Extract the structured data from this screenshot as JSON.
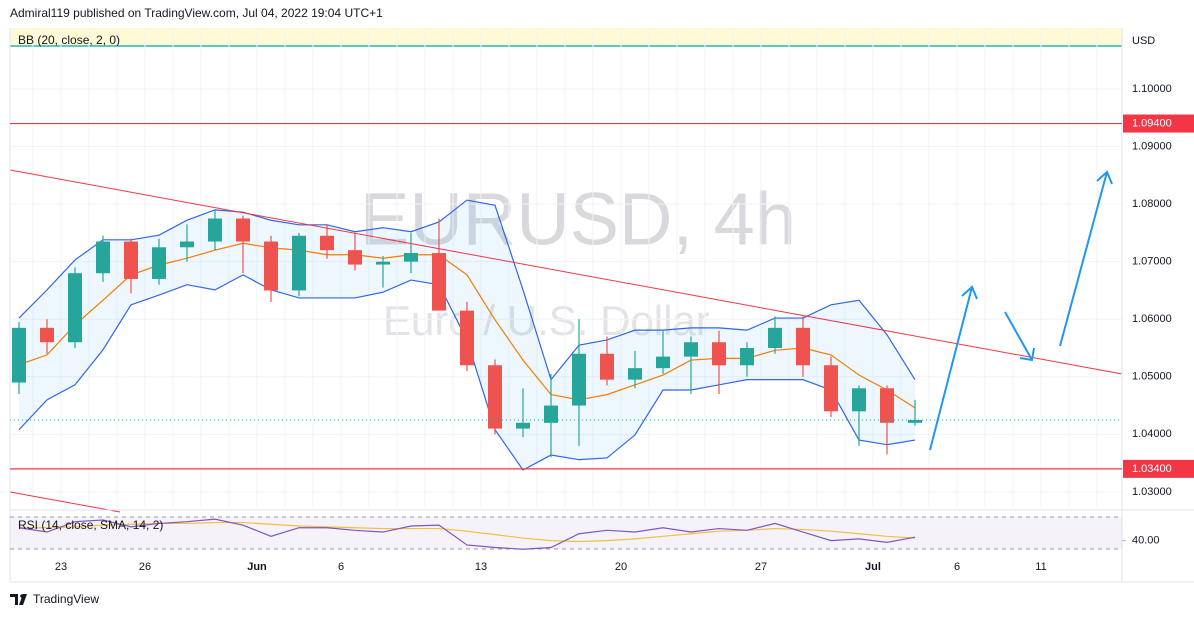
{
  "header": "Admiral119 published on TradingView.com, Jul 04, 2022 19:04 UTC+1",
  "footer": "TradingView",
  "chart_data": {
    "type": "candlestick",
    "title": "EURUSD, 4h",
    "subtitle": "Euro / U.S. Dollar",
    "currency": "USD",
    "categories": [
      null,
      null,
      "23",
      null,
      null,
      "26",
      null,
      null,
      null,
      "Jun",
      null,
      null,
      "6",
      null,
      null,
      null,
      null,
      "13",
      null,
      null,
      null,
      null,
      "20",
      null,
      null,
      null,
      null,
      "27",
      null,
      null,
      null,
      "Jul",
      null,
      null,
      "6",
      null,
      null,
      "11",
      null,
      null
    ],
    "open": [
      1.049,
      1.0585,
      1.056,
      1.068,
      1.0735,
      1.067,
      1.0725,
      1.0735,
      1.0775,
      1.0735,
      1.065,
      1.0745,
      1.072,
      1.0695,
      1.07,
      1.0715,
      1.0615,
      1.052,
      1.041,
      1.042,
      1.045,
      1.054,
      1.0495,
      1.0515,
      1.0535,
      1.056,
      1.052,
      1.055,
      1.0585,
      1.052,
      1.044,
      1.048,
      1.042,
      null,
      null,
      null,
      null,
      null,
      null,
      null
    ],
    "high": [
      1.0595,
      1.06,
      1.069,
      1.0745,
      1.074,
      1.074,
      1.0765,
      1.079,
      1.078,
      1.0745,
      1.075,
      1.0765,
      1.075,
      1.071,
      1.075,
      1.0775,
      1.063,
      1.053,
      1.048,
      1.0505,
      1.06,
      1.057,
      1.0545,
      1.058,
      1.057,
      1.058,
      1.056,
      1.0605,
      1.0605,
      1.0535,
      1.0485,
      1.0485,
      1.046,
      null,
      null,
      null,
      null,
      null,
      null,
      null
    ],
    "low": [
      1.047,
      1.054,
      1.055,
      1.0665,
      1.0645,
      1.066,
      1.07,
      1.072,
      1.068,
      1.063,
      1.064,
      1.0705,
      1.0685,
      1.0655,
      1.068,
      1.0615,
      1.051,
      1.04,
      1.0395,
      1.036,
      1.038,
      1.0485,
      1.048,
      1.0505,
      1.047,
      1.047,
      1.05,
      1.054,
      1.05,
      1.043,
      1.038,
      1.0365,
      1.0415,
      null,
      null,
      null,
      null,
      null,
      null,
      null
    ],
    "close": [
      1.0585,
      1.056,
      1.068,
      1.0735,
      1.067,
      1.0725,
      1.0735,
      1.0775,
      1.0735,
      1.065,
      1.0745,
      1.072,
      1.0695,
      1.07,
      1.0715,
      1.0615,
      1.052,
      1.041,
      1.042,
      1.045,
      1.054,
      1.0495,
      1.0515,
      1.0535,
      1.056,
      1.052,
      1.055,
      1.0585,
      1.052,
      1.044,
      1.048,
      1.042,
      1.0425,
      null,
      null,
      null,
      null,
      null,
      null,
      null
    ],
    "up_color": "#26a69a",
    "down_color": "#ef5350",
    "ylim": [
      1.0272,
      1.1106
    ],
    "yticks": [
      {
        "value": 1.1,
        "label": "1.10000"
      },
      {
        "value": 1.09,
        "label": "1.09000"
      },
      {
        "value": 1.08,
        "label": "1.08000"
      },
      {
        "value": 1.07,
        "label": "1.07000"
      },
      {
        "value": 1.06,
        "label": "1.06000"
      },
      {
        "value": 1.05,
        "label": "1.05000"
      },
      {
        "value": 1.04,
        "label": "1.04000"
      },
      {
        "value": 1.03,
        "label": "1.03000"
      }
    ],
    "grid": true,
    "hlines": [
      {
        "value": 1.094,
        "label": "1.09400"
      },
      {
        "value": 1.034,
        "label": "1.03400"
      }
    ],
    "hline_color": "#f23645",
    "bollinger": {
      "label": "BB (20, close, 2, 0)",
      "band_color": "#2f66e8",
      "basis_color": "#f57c00",
      "upper": [
        1.0602,
        1.0651,
        1.0703,
        1.0738,
        1.0738,
        1.0746,
        1.0772,
        1.079,
        1.0786,
        1.0772,
        1.0764,
        1.0764,
        1.0752,
        1.0759,
        1.0752,
        1.0769,
        1.0807,
        1.0798,
        1.0651,
        1.0495,
        1.0555,
        1.0564,
        1.0581,
        1.0581,
        1.0585,
        1.0585,
        1.0581,
        1.0602,
        1.0602,
        1.0625,
        1.0633,
        1.0573,
        1.0495,
        null,
        null,
        null,
        null,
        null,
        null,
        null
      ],
      "basis": [
        1.0521,
        1.0538,
        1.059,
        1.0633,
        1.0677,
        1.0694,
        1.0706,
        1.072,
        1.0732,
        1.0724,
        1.072,
        1.0712,
        1.0712,
        1.0706,
        1.0712,
        1.0712,
        1.0677,
        1.0599,
        1.0529,
        1.0469,
        1.046,
        1.0469,
        1.0486,
        1.0503,
        1.0529,
        1.0532,
        1.0532,
        1.0546,
        1.055,
        1.0538,
        1.0503,
        1.0477,
        1.0446,
        null,
        null,
        null,
        null,
        null,
        null,
        null
      ],
      "lower": [
        1.0408,
        1.046,
        1.0486,
        1.0547,
        1.0625,
        1.0642,
        1.066,
        1.0651,
        1.0677,
        1.0651,
        1.0637,
        1.0637,
        1.0637,
        1.0647,
        1.0668,
        1.066,
        1.0564,
        1.0408,
        1.0338,
        1.0364,
        1.0356,
        1.0359,
        1.0399,
        1.0477,
        1.0477,
        1.0486,
        1.0495,
        1.0495,
        1.0495,
        1.0477,
        1.039,
        1.0382,
        1.039,
        null,
        null,
        null,
        null,
        null,
        null,
        null
      ]
    },
    "rsi": {
      "label": "RSI (14, close, SMA, 14, 2)",
      "color": "#7e57c2",
      "ma_color": "#f0c040",
      "values": [
        55,
        50,
        62,
        64,
        56,
        60,
        62,
        65,
        58,
        45,
        55,
        55,
        52,
        50,
        57,
        58,
        35,
        32,
        30,
        32,
        48,
        52,
        50,
        55,
        50,
        54,
        52,
        60,
        50,
        40,
        42,
        38,
        44,
        null,
        null,
        null,
        null,
        null,
        null,
        null
      ],
      "ma": [
        55,
        55,
        56,
        58,
        59,
        60,
        60,
        61,
        61,
        59,
        57,
        56,
        55,
        54,
        54,
        54,
        51,
        47,
        43,
        40,
        39,
        40,
        42,
        45,
        48,
        51,
        52,
        54,
        53,
        51,
        48,
        45,
        43,
        null,
        null,
        null,
        null,
        null,
        null,
        null
      ],
      "ylim": [
        23.3,
        75.6
      ],
      "yticks": [
        {
          "value": 40,
          "label": "40.00"
        }
      ]
    }
  }
}
